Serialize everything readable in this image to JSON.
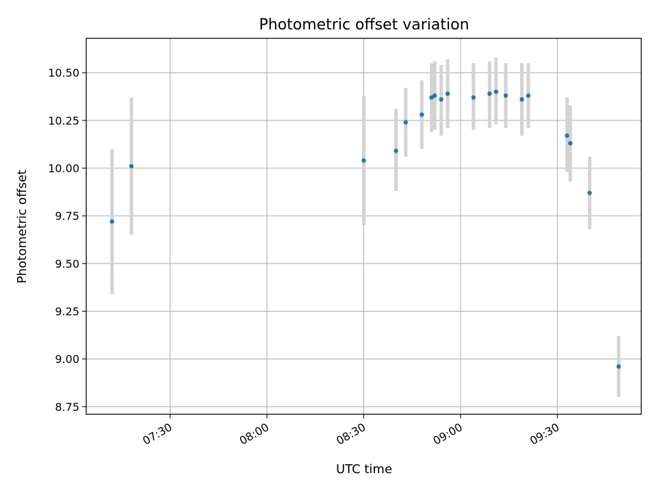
{
  "chart_data": {
    "type": "scatter",
    "title": "Photometric offset variation",
    "xlabel": "UTC time",
    "ylabel": "Photometric offset",
    "x_unit": "time of day (HH:MM)",
    "xlim": [
      "07:04",
      "09:56"
    ],
    "ylim": [
      8.71,
      10.68
    ],
    "x_ticks": [
      "07:30",
      "08:00",
      "08:30",
      "09:00",
      "09:30"
    ],
    "y_ticks": [
      "8.75",
      "9.00",
      "9.25",
      "9.50",
      "9.75",
      "10.00",
      "10.25",
      "10.50"
    ],
    "grid": true,
    "legend": "none",
    "colors": {
      "marker": "#1f77b4",
      "errorbar": "#d3d3d3",
      "grid": "#b0b0b0"
    },
    "points": [
      {
        "t": "07:12",
        "y": 9.72,
        "low": 9.34,
        "high": 10.1
      },
      {
        "t": "07:18",
        "y": 10.01,
        "low": 9.65,
        "high": 10.37
      },
      {
        "t": "08:30",
        "y": 10.04,
        "low": 9.7,
        "high": 10.38
      },
      {
        "t": "08:40",
        "y": 10.09,
        "low": 9.88,
        "high": 10.31
      },
      {
        "t": "08:43",
        "y": 10.24,
        "low": 10.06,
        "high": 10.42
      },
      {
        "t": "08:48",
        "y": 10.28,
        "low": 10.1,
        "high": 10.46
      },
      {
        "t": "08:51",
        "y": 10.37,
        "low": 10.19,
        "high": 10.55
      },
      {
        "t": "08:52",
        "y": 10.38,
        "low": 10.2,
        "high": 10.56
      },
      {
        "t": "08:54",
        "y": 10.36,
        "low": 10.17,
        "high": 10.54
      },
      {
        "t": "08:56",
        "y": 10.39,
        "low": 10.21,
        "high": 10.57
      },
      {
        "t": "09:04",
        "y": 10.37,
        "low": 10.2,
        "high": 10.55
      },
      {
        "t": "09:09",
        "y": 10.39,
        "low": 10.21,
        "high": 10.56
      },
      {
        "t": "09:11",
        "y": 10.4,
        "low": 10.23,
        "high": 10.58
      },
      {
        "t": "09:14",
        "y": 10.38,
        "low": 10.21,
        "high": 10.55
      },
      {
        "t": "09:19",
        "y": 10.36,
        "low": 10.17,
        "high": 10.55
      },
      {
        "t": "09:21",
        "y": 10.38,
        "low": 10.21,
        "high": 10.55
      },
      {
        "t": "09:33",
        "y": 10.17,
        "low": 9.98,
        "high": 10.37
      },
      {
        "t": "09:34",
        "y": 10.13,
        "low": 9.93,
        "high": 10.33
      },
      {
        "t": "09:40",
        "y": 9.87,
        "low": 9.68,
        "high": 10.06
      },
      {
        "t": "09:49",
        "y": 8.96,
        "low": 8.8,
        "high": 9.12
      }
    ]
  }
}
